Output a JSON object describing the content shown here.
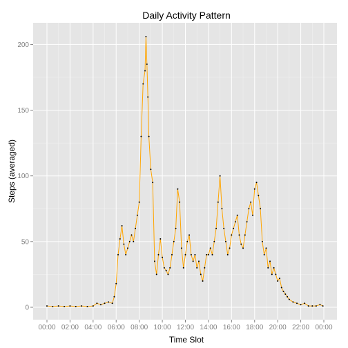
{
  "chart_data": {
    "type": "line",
    "title": "Daily Activity Pattern",
    "xlabel": "Time Slot",
    "ylabel": "Steps (averaged)",
    "x_unit": "HH:MM",
    "xlim": [
      "00:00",
      "23:55"
    ],
    "ylim": [
      0,
      206
    ],
    "x_ticks": [
      "00:00",
      "02:00",
      "04:00",
      "06:00",
      "08:00",
      "10:00",
      "12:00",
      "14:00",
      "16:00",
      "18:00",
      "20:00",
      "22:00",
      "00:00"
    ],
    "y_ticks": [
      0,
      50,
      100,
      150,
      200
    ],
    "grid": true,
    "legend": "none",
    "colors": {
      "line": "#FFA500",
      "points": "#000000",
      "panel": "#E5E5E5",
      "grid_major": "#FFFFFF",
      "grid_minor": "#F2F2F2"
    },
    "series": [
      {
        "x": [
          "00:00",
          "00:30",
          "01:00",
          "01:30",
          "02:00",
          "02:30",
          "03:00",
          "03:30",
          "04:00",
          "04:20",
          "04:40",
          "05:00",
          "05:20",
          "05:40",
          "05:50",
          "06:00",
          "06:10",
          "06:20",
          "06:30",
          "06:40",
          "06:50",
          "07:00",
          "07:10",
          "07:20",
          "07:30",
          "07:40",
          "07:50",
          "08:00",
          "08:10",
          "08:20",
          "08:30",
          "08:35",
          "08:40",
          "08:45",
          "08:50",
          "09:00",
          "09:10",
          "09:20",
          "09:30",
          "09:40",
          "09:50",
          "10:00",
          "10:10",
          "10:20",
          "10:30",
          "10:40",
          "10:50",
          "11:00",
          "11:10",
          "11:20",
          "11:30",
          "11:40",
          "11:50",
          "12:00",
          "12:10",
          "12:20",
          "12:30",
          "12:40",
          "12:50",
          "13:00",
          "13:10",
          "13:20",
          "13:30",
          "13:40",
          "13:50",
          "14:00",
          "14:10",
          "14:20",
          "14:30",
          "14:40",
          "14:50",
          "15:00",
          "15:10",
          "15:20",
          "15:30",
          "15:40",
          "15:50",
          "16:00",
          "16:10",
          "16:20",
          "16:30",
          "16:40",
          "16:50",
          "17:00",
          "17:10",
          "17:20",
          "17:30",
          "17:40",
          "17:50",
          "18:00",
          "18:10",
          "18:20",
          "18:30",
          "18:40",
          "18:50",
          "19:00",
          "19:10",
          "19:20",
          "19:30",
          "19:40",
          "19:50",
          "20:00",
          "20:10",
          "20:20",
          "20:30",
          "20:40",
          "20:50",
          "21:00",
          "21:20",
          "21:40",
          "22:00",
          "22:20",
          "22:40",
          "23:00",
          "23:20",
          "23:40",
          "23:55"
        ],
        "values": [
          1,
          0.5,
          1,
          0.5,
          1,
          0.5,
          1,
          0.5,
          1,
          3,
          2,
          3,
          4,
          3,
          8,
          18,
          40,
          52,
          62,
          48,
          40,
          45,
          50,
          55,
          50,
          60,
          70,
          80,
          130,
          170,
          180,
          206,
          185,
          160,
          130,
          105,
          95,
          35,
          25,
          40,
          52,
          38,
          30,
          28,
          25,
          30,
          40,
          50,
          60,
          90,
          80,
          45,
          30,
          40,
          50,
          55,
          40,
          35,
          40,
          30,
          35,
          25,
          20,
          30,
          40,
          40,
          45,
          40,
          50,
          60,
          80,
          100,
          75,
          60,
          50,
          40,
          45,
          55,
          60,
          65,
          70,
          55,
          48,
          45,
          55,
          65,
          75,
          80,
          70,
          90,
          95,
          85,
          75,
          50,
          40,
          45,
          30,
          35,
          25,
          30,
          25,
          20,
          22,
          15,
          12,
          10,
          8,
          6,
          4,
          3,
          2,
          3,
          1,
          1,
          1,
          2,
          1
        ]
      }
    ]
  }
}
